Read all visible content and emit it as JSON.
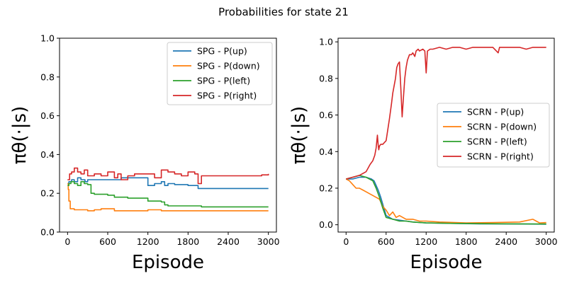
{
  "figure": {
    "title": "Probabilities for state 21"
  },
  "colors": {
    "up": "#1f77b4",
    "down": "#ff7f0e",
    "left": "#2ca02c",
    "right": "#d62728"
  },
  "chart_data": [
    {
      "type": "line",
      "xlabel": "Episode",
      "ylabel": "πθ(·|s)",
      "xlim": [
        -120,
        3120
      ],
      "ylim": [
        0.0,
        1.0
      ],
      "xticks": [
        0,
        600,
        1200,
        1800,
        2400,
        3000
      ],
      "yticks": [
        0.0,
        0.2,
        0.4,
        0.6,
        0.8,
        1.0
      ],
      "ytick_labels": [
        "0.0",
        "0.2",
        "0.4",
        "0.6",
        "0.8",
        "1.0"
      ],
      "legend_position": "top-right",
      "step": true,
      "series": [
        {
          "name": "SPG - P(up)",
          "color_key": "up",
          "x": [
            0,
            20,
            60,
            100,
            150,
            200,
            260,
            300,
            400,
            500,
            600,
            700,
            800,
            900,
            1000,
            1100,
            1200,
            1300,
            1400,
            1450,
            1500,
            1600,
            1800,
            1950,
            2000,
            2400,
            3000
          ],
          "y": [
            0.25,
            0.26,
            0.27,
            0.26,
            0.28,
            0.27,
            0.26,
            0.27,
            0.27,
            0.27,
            0.27,
            0.27,
            0.28,
            0.28,
            0.28,
            0.28,
            0.24,
            0.25,
            0.26,
            0.24,
            0.25,
            0.245,
            0.24,
            0.225,
            0.225,
            0.225,
            0.225
          ]
        },
        {
          "name": "SPG - P(down)",
          "color_key": "down",
          "x": [
            0,
            10,
            20,
            40,
            60,
            100,
            200,
            300,
            400,
            500,
            600,
            700,
            800,
            900,
            1000,
            1200,
            1300,
            1400,
            1500,
            2000,
            2400,
            3000
          ],
          "y": [
            0.25,
            0.22,
            0.16,
            0.12,
            0.12,
            0.115,
            0.115,
            0.11,
            0.115,
            0.12,
            0.12,
            0.11,
            0.11,
            0.11,
            0.11,
            0.115,
            0.115,
            0.11,
            0.11,
            0.11,
            0.11,
            0.11
          ]
        },
        {
          "name": "SPG - P(left)",
          "color_key": "left",
          "x": [
            0,
            20,
            50,
            100,
            150,
            200,
            250,
            300,
            350,
            400,
            500,
            600,
            700,
            800,
            900,
            1000,
            1200,
            1300,
            1400,
            1450,
            1500,
            1600,
            1800,
            2000,
            2400,
            3000
          ],
          "y": [
            0.24,
            0.25,
            0.26,
            0.25,
            0.24,
            0.26,
            0.25,
            0.245,
            0.2,
            0.195,
            0.195,
            0.19,
            0.18,
            0.18,
            0.175,
            0.175,
            0.16,
            0.16,
            0.155,
            0.14,
            0.135,
            0.135,
            0.135,
            0.13,
            0.13,
            0.13
          ]
        },
        {
          "name": "SPG - P(right)",
          "color_key": "right",
          "x": [
            0,
            30,
            60,
            100,
            150,
            200,
            250,
            300,
            400,
            500,
            600,
            700,
            750,
            800,
            900,
            1000,
            1100,
            1200,
            1300,
            1400,
            1500,
            1600,
            1700,
            1800,
            1900,
            1950,
            2000,
            2400,
            2900,
            3000
          ],
          "y": [
            0.27,
            0.3,
            0.31,
            0.33,
            0.31,
            0.3,
            0.32,
            0.29,
            0.3,
            0.29,
            0.31,
            0.28,
            0.3,
            0.27,
            0.29,
            0.3,
            0.3,
            0.3,
            0.28,
            0.32,
            0.31,
            0.3,
            0.29,
            0.31,
            0.3,
            0.25,
            0.29,
            0.29,
            0.295,
            0.3
          ]
        }
      ]
    },
    {
      "type": "line",
      "xlabel": "Episode",
      "ylabel": "πθ(·|s)",
      "xlim": [
        -120,
        3120
      ],
      "ylim": [
        -0.04,
        1.02
      ],
      "xticks": [
        0,
        600,
        1200,
        1800,
        2400,
        3000
      ],
      "yticks": [
        0.0,
        0.2,
        0.4,
        0.6,
        0.8,
        1.0
      ],
      "ytick_labels": [
        "0.0",
        "0.2",
        "0.4",
        "0.6",
        "0.8",
        "1.0"
      ],
      "legend_position": "center-right",
      "step": false,
      "series": [
        {
          "name": "SCRN - P(up)",
          "color_key": "up",
          "x": [
            0,
            100,
            200,
            300,
            380,
            420,
            480,
            500,
            520,
            560,
            600,
            650,
            700,
            800,
            900,
            1000,
            1200,
            1500,
            2000,
            2500,
            3000
          ],
          "y": [
            0.25,
            0.25,
            0.26,
            0.26,
            0.25,
            0.24,
            0.19,
            0.17,
            0.15,
            0.1,
            0.05,
            0.04,
            0.03,
            0.025,
            0.02,
            0.015,
            0.01,
            0.008,
            0.005,
            0.004,
            0.003
          ]
        },
        {
          "name": "SCRN - P(down)",
          "color_key": "down",
          "x": [
            0,
            50,
            100,
            150,
            200,
            250,
            300,
            350,
            400,
            450,
            500,
            550,
            600,
            650,
            700,
            750,
            800,
            900,
            1000,
            1100,
            1200,
            1400,
            1800,
            2200,
            2600,
            2800,
            2850,
            2900,
            3000
          ],
          "y": [
            0.25,
            0.24,
            0.22,
            0.2,
            0.2,
            0.19,
            0.18,
            0.17,
            0.16,
            0.15,
            0.14,
            0.1,
            0.08,
            0.05,
            0.07,
            0.04,
            0.05,
            0.03,
            0.03,
            0.02,
            0.02,
            0.015,
            0.01,
            0.012,
            0.015,
            0.03,
            0.02,
            0.01,
            0.012
          ]
        },
        {
          "name": "SCRN - P(left)",
          "color_key": "left",
          "x": [
            0,
            100,
            200,
            300,
            400,
            450,
            500,
            550,
            600,
            700,
            800,
            900,
            1000,
            1200,
            1500,
            2000,
            2500,
            3000
          ],
          "y": [
            0.25,
            0.26,
            0.27,
            0.26,
            0.24,
            0.2,
            0.15,
            0.09,
            0.04,
            0.03,
            0.02,
            0.02,
            0.015,
            0.01,
            0.008,
            0.006,
            0.005,
            0.004
          ]
        },
        {
          "name": "SCRN - P(right)",
          "color_key": "right",
          "x": [
            0,
            100,
            200,
            300,
            360,
            400,
            430,
            450,
            470,
            480,
            490,
            500,
            520,
            550,
            600,
            650,
            680,
            700,
            720,
            740,
            760,
            780,
            800,
            820,
            840,
            860,
            880,
            900,
            920,
            950,
            980,
            1000,
            1030,
            1050,
            1080,
            1100,
            1150,
            1180,
            1200,
            1220,
            1260,
            1300,
            1400,
            1500,
            1600,
            1700,
            1800,
            1900,
            2000,
            2100,
            2200,
            2280,
            2300,
            2400,
            2500,
            2600,
            2700,
            2800,
            2900,
            3000
          ],
          "y": [
            0.25,
            0.26,
            0.27,
            0.29,
            0.33,
            0.35,
            0.38,
            0.42,
            0.49,
            0.44,
            0.41,
            0.43,
            0.44,
            0.44,
            0.46,
            0.58,
            0.66,
            0.72,
            0.76,
            0.8,
            0.86,
            0.88,
            0.89,
            0.75,
            0.59,
            0.7,
            0.8,
            0.86,
            0.9,
            0.93,
            0.93,
            0.94,
            0.92,
            0.95,
            0.96,
            0.95,
            0.96,
            0.95,
            0.83,
            0.95,
            0.96,
            0.96,
            0.97,
            0.96,
            0.97,
            0.97,
            0.96,
            0.97,
            0.97,
            0.97,
            0.97,
            0.94,
            0.97,
            0.97,
            0.97,
            0.97,
            0.96,
            0.97,
            0.97,
            0.97
          ]
        }
      ]
    }
  ]
}
